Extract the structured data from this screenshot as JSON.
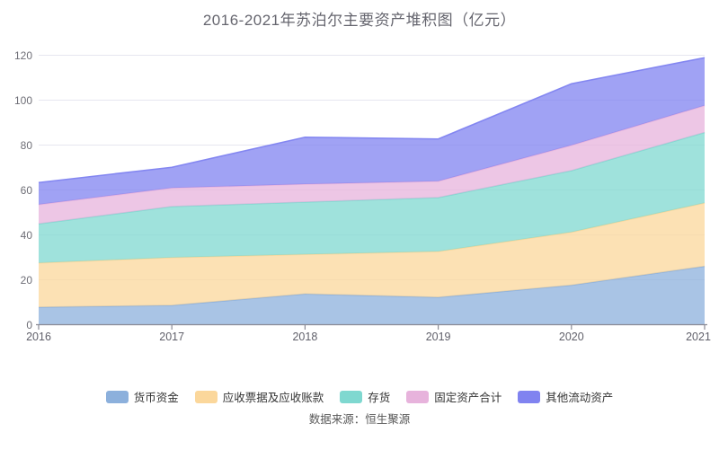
{
  "title": "2016-2021年苏泊尔主要资产堆积图（亿元）",
  "source": "数据来源：恒生聚源",
  "colors": {
    "grid": "#e6e6f0",
    "axis": "#8a8a94",
    "title_text": "#65656e",
    "axis_text": "#6e6e76"
  },
  "chart_data": {
    "type": "area",
    "stacked": true,
    "title": "2016-2021年苏泊尔主要资产堆积图（亿元）",
    "x": [
      "2016",
      "2017",
      "2018",
      "2019",
      "2020",
      "2021"
    ],
    "series": [
      {
        "name": "货币资金",
        "color": "#8CB0DC",
        "values": [
          7.8,
          8.6,
          13.7,
          12.2,
          17.6,
          26.0
        ]
      },
      {
        "name": "应收票据及应收账款",
        "color": "#FBD79B",
        "values": [
          19.7,
          21.3,
          17.6,
          20.4,
          23.6,
          28.2
        ]
      },
      {
        "name": "存货",
        "color": "#7FD8D0",
        "values": [
          17.4,
          22.7,
          23.3,
          24.0,
          27.4,
          31.4
        ]
      },
      {
        "name": "固定资产合计",
        "color": "#E7B3DC",
        "values": [
          8.6,
          8.3,
          8.0,
          7.3,
          11.3,
          12.0
        ]
      },
      {
        "name": "其他流动资产",
        "color": "#8083F0",
        "values": [
          9.8,
          9.2,
          20.9,
          18.8,
          27.4,
          21.3
        ]
      }
    ],
    "totals": [
      63.3,
      70.1,
      83.5,
      82.7,
      107.3,
      118.9
    ],
    "xlabel": "",
    "ylabel": "",
    "ylim": [
      0,
      120
    ],
    "yticks": [
      0,
      20,
      40,
      60,
      80,
      100,
      120
    ],
    "grid": true,
    "legend_position": "bottom"
  }
}
